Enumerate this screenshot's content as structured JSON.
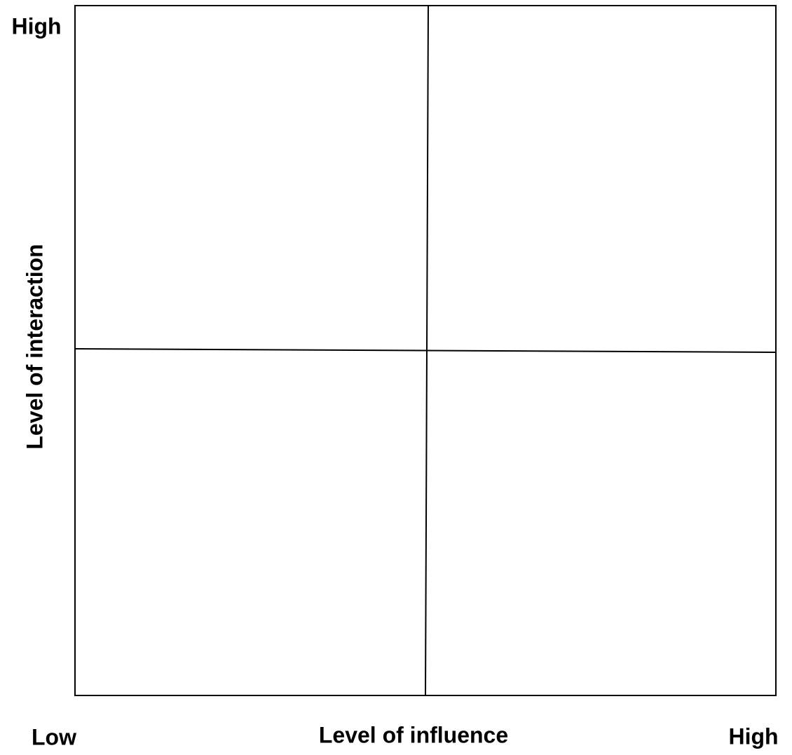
{
  "y_axis": {
    "label": "Level of interaction",
    "high": "High"
  },
  "x_axis": {
    "label": "Level of influence",
    "low": "Low",
    "high": "High"
  }
}
